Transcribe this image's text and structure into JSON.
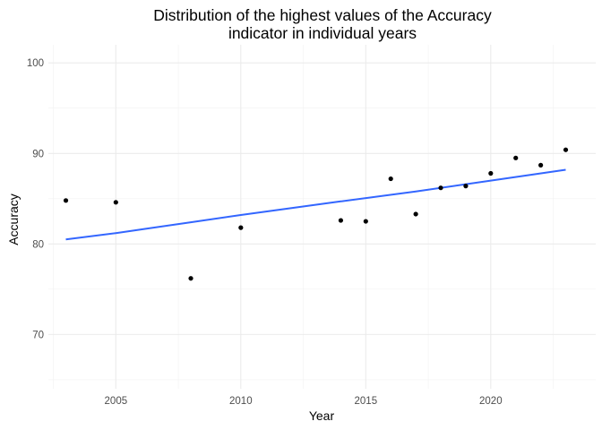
{
  "chart_data": {
    "type": "scatter",
    "title_lines": [
      "Distribution of the highest values of the Accuracy",
      "indicator in individual years"
    ],
    "xlabel": "Year",
    "ylabel": "Accuracy",
    "xlim": [
      2002.3,
      2024.2
    ],
    "ylim": [
      64,
      102
    ],
    "x_ticks": [
      2005,
      2010,
      2015,
      2020
    ],
    "x_tick_labels": [
      "2005",
      "2010",
      "2015",
      "2020"
    ],
    "y_ticks": [
      70,
      80,
      90,
      100
    ],
    "y_tick_labels": [
      "70",
      "80",
      "90",
      "100"
    ],
    "x_minor_ticks": [
      2002.5,
      2007.5,
      2012.5,
      2017.5,
      2022.5
    ],
    "y_minor_ticks": [
      65,
      75,
      85,
      95
    ],
    "grid": true,
    "legend": "none",
    "points": [
      {
        "x": 2003,
        "y": 84.8
      },
      {
        "x": 2005,
        "y": 84.6
      },
      {
        "x": 2008,
        "y": 76.2
      },
      {
        "x": 2010,
        "y": 81.8
      },
      {
        "x": 2014,
        "y": 82.6
      },
      {
        "x": 2015,
        "y": 82.5
      },
      {
        "x": 2016,
        "y": 87.2
      },
      {
        "x": 2017,
        "y": 83.3
      },
      {
        "x": 2018,
        "y": 86.2
      },
      {
        "x": 2019,
        "y": 86.4
      },
      {
        "x": 2020,
        "y": 87.8
      },
      {
        "x": 2021,
        "y": 89.5
      },
      {
        "x": 2022,
        "y": 88.7
      },
      {
        "x": 2023,
        "y": 90.4
      }
    ],
    "trend_line": [
      {
        "x": 2003,
        "y": 80.5
      },
      {
        "x": 2005,
        "y": 81.2
      },
      {
        "x": 2008,
        "y": 82.4
      },
      {
        "x": 2010,
        "y": 83.2
      },
      {
        "x": 2014,
        "y": 84.7
      },
      {
        "x": 2017,
        "y": 85.8
      },
      {
        "x": 2020,
        "y": 87.0
      },
      {
        "x": 2023,
        "y": 88.2
      }
    ],
    "colors": {
      "point": "#000000",
      "trend": "#3366ff",
      "grid_major": "#ebebeb",
      "grid_minor": "#f2f2f2",
      "axis_text": "#4d4d4d",
      "title": "#000000"
    }
  }
}
